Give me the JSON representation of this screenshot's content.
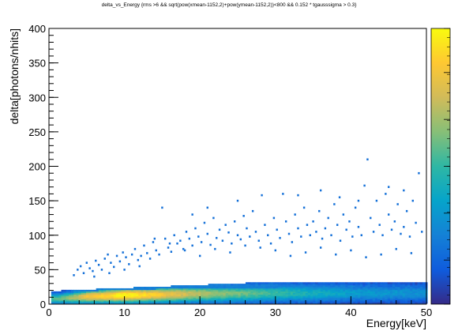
{
  "chart_data": {
    "type": "heatmap",
    "title": "delta_vs_Energy {rms >6 && sqrt(pow(xmean-1152,2)+pow(ymean-1152,2))<800 && 0.152 * tgausssigma > 0.3}",
    "xlabel": "Energy[keV]",
    "ylabel": "delta[photons/nhits]",
    "xlim": [
      0,
      50
    ],
    "ylim": [
      0,
      400
    ],
    "x_ticks": [
      0,
      10,
      20,
      30,
      40,
      50
    ],
    "y_ticks": [
      0,
      50,
      100,
      150,
      200,
      250,
      300,
      350,
      400
    ],
    "colorbar": {
      "colors": [
        "#352a87",
        "#0f5cdd",
        "#1481d6",
        "#06a4ca",
        "#2eb7a4",
        "#87bf77",
        "#d1bb59",
        "#fec832",
        "#f9fb0e"
      ],
      "placement": "right"
    },
    "grid": false,
    "density_band": {
      "description_points": [
        {
          "x": 1,
          "y_center": 7,
          "intensity": 0.55
        },
        {
          "x": 5,
          "y_center": 10,
          "intensity": 0.85
        },
        {
          "x": 10,
          "y_center": 12,
          "intensity": 1.0
        },
        {
          "x": 15,
          "y_center": 13,
          "intensity": 0.85
        },
        {
          "x": 20,
          "y_center": 14,
          "intensity": 0.7
        },
        {
          "x": 30,
          "y_center": 15,
          "intensity": 0.5
        },
        {
          "x": 40,
          "y_center": 15,
          "intensity": 0.35
        },
        {
          "x": 50,
          "y_center": 15,
          "intensity": 0.3
        }
      ],
      "y_max": 30
    },
    "sparse_points": [
      [
        3.3,
        42
      ],
      [
        3.8,
        50
      ],
      [
        4.2,
        55
      ],
      [
        4.6,
        45
      ],
      [
        5.0,
        60
      ],
      [
        5.4,
        52
      ],
      [
        5.8,
        48
      ],
      [
        6.2,
        63
      ],
      [
        6.6,
        57
      ],
      [
        7.0,
        50
      ],
      [
        7.4,
        66
      ],
      [
        7.8,
        72
      ],
      [
        8.2,
        60
      ],
      [
        8.6,
        54
      ],
      [
        9.0,
        70
      ],
      [
        9.4,
        62
      ],
      [
        9.8,
        75
      ],
      [
        10.2,
        68
      ],
      [
        10.6,
        58
      ],
      [
        11.0,
        72
      ],
      [
        11.4,
        80
      ],
      [
        11.8,
        64
      ],
      [
        12.2,
        70
      ],
      [
        12.6,
        85
      ],
      [
        13.0,
        74
      ],
      [
        13.4,
        66
      ],
      [
        13.8,
        90
      ],
      [
        14.2,
        78
      ],
      [
        14.6,
        72
      ],
      [
        15.0,
        140
      ],
      [
        15.4,
        95
      ],
      [
        15.8,
        82
      ],
      [
        16.2,
        76
      ],
      [
        16.6,
        100
      ],
      [
        17.0,
        88
      ],
      [
        17.4,
        92
      ],
      [
        17.8,
        80
      ],
      [
        18.2,
        105
      ],
      [
        18.6,
        95
      ],
      [
        19.0,
        85
      ],
      [
        19.4,
        110
      ],
      [
        19.8,
        98
      ],
      [
        20.2,
        90
      ],
      [
        20.6,
        118
      ],
      [
        21.0,
        102
      ],
      [
        21.4,
        86
      ],
      [
        21.8,
        125
      ],
      [
        22.2,
        96
      ],
      [
        22.6,
        108
      ],
      [
        23.0,
        92
      ],
      [
        23.4,
        115
      ],
      [
        23.8,
        104
      ],
      [
        24.2,
        88
      ],
      [
        24.6,
        120
      ],
      [
        25.0,
        100
      ],
      [
        25.4,
        94
      ],
      [
        25.8,
        128
      ],
      [
        26.2,
        110
      ],
      [
        26.6,
        98
      ],
      [
        27.0,
        135
      ],
      [
        27.4,
        105
      ],
      [
        27.8,
        92
      ],
      [
        28.2,
        158
      ],
      [
        28.6,
        115
      ],
      [
        29.0,
        100
      ],
      [
        29.4,
        88
      ],
      [
        29.8,
        125
      ],
      [
        30.2,
        108
      ],
      [
        30.6,
        96
      ],
      [
        31.0,
        160
      ],
      [
        31.4,
        120
      ],
      [
        31.8,
        102
      ],
      [
        32.2,
        90
      ],
      [
        32.6,
        130
      ],
      [
        33.0,
        110
      ],
      [
        33.4,
        98
      ],
      [
        33.8,
        140
      ],
      [
        34.2,
        115
      ],
      [
        34.6,
        100
      ],
      [
        35.0,
        120
      ],
      [
        35.4,
        105
      ],
      [
        35.8,
        135
      ],
      [
        36.2,
        95
      ],
      [
        36.6,
        110
      ],
      [
        37.0,
        125
      ],
      [
        37.4,
        100
      ],
      [
        37.8,
        145
      ],
      [
        38.2,
        115
      ],
      [
        38.6,
        92
      ],
      [
        39.0,
        130
      ],
      [
        39.4,
        108
      ],
      [
        39.8,
        120
      ],
      [
        40.2,
        98
      ],
      [
        40.6,
        140
      ],
      [
        41.0,
        112
      ],
      [
        41.4,
        100
      ],
      [
        41.8,
        172
      ],
      [
        42.2,
        210
      ],
      [
        42.6,
        125
      ],
      [
        43.0,
        105
      ],
      [
        43.4,
        150
      ],
      [
        43.8,
        115
      ],
      [
        44.2,
        100
      ],
      [
        44.6,
        160
      ],
      [
        45.0,
        130
      ],
      [
        45.4,
        108
      ],
      [
        45.8,
        120
      ],
      [
        46.2,
        145
      ],
      [
        46.6,
        102
      ],
      [
        47.0,
        112
      ],
      [
        47.4,
        135
      ],
      [
        47.8,
        98
      ],
      [
        48.2,
        150
      ],
      [
        48.6,
        118
      ],
      [
        49.0,
        190
      ],
      [
        49.4,
        105
      ],
      [
        14.0,
        95
      ],
      [
        16.0,
        88
      ],
      [
        18.0,
        78
      ],
      [
        20.0,
        70
      ],
      [
        22.0,
        80
      ],
      [
        24.0,
        75
      ],
      [
        26.0,
        85
      ],
      [
        28.0,
        82
      ],
      [
        30.0,
        78
      ],
      [
        32.0,
        70
      ],
      [
        34.0,
        75
      ],
      [
        36.0,
        82
      ],
      [
        38.0,
        72
      ],
      [
        40.0,
        78
      ],
      [
        42.0,
        68
      ],
      [
        44.0,
        72
      ],
      [
        46.0,
        80
      ],
      [
        48.0,
        74
      ],
      [
        12.0,
        55
      ],
      [
        10.0,
        50
      ],
      [
        8.0,
        45
      ],
      [
        6.0,
        40
      ],
      [
        25.0,
        150
      ],
      [
        33.0,
        158
      ],
      [
        36.0,
        165
      ],
      [
        38.5,
        155
      ],
      [
        41.0,
        150
      ],
      [
        45.0,
        170
      ],
      [
        47.0,
        165
      ],
      [
        19.0,
        130
      ],
      [
        21.0,
        140
      ]
    ]
  }
}
